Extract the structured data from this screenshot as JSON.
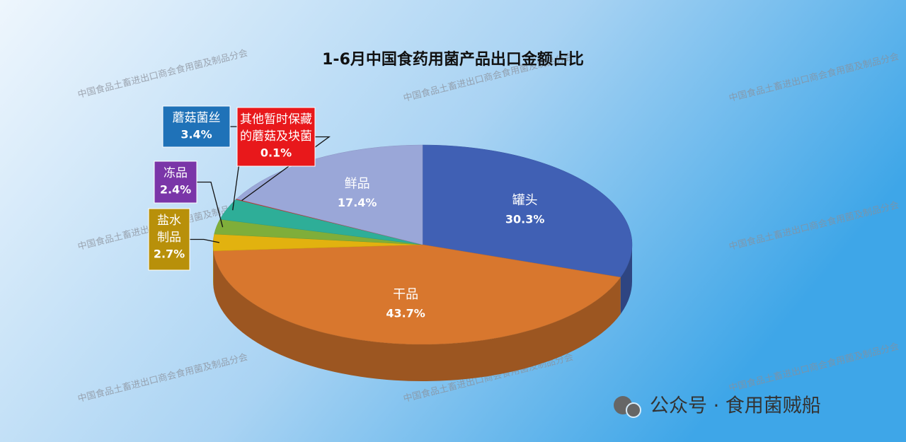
{
  "chart_data": {
    "type": "pie",
    "title": "1-6月中国食药用菌产品出口金额占比",
    "categories": [
      "罐头",
      "干品",
      "盐水制品",
      "冻品",
      "蘑菇菌丝",
      "其他暂时保藏的蘑菇及块菌",
      "鲜品"
    ],
    "values": [
      30.3,
      43.7,
      2.7,
      2.4,
      3.4,
      0.1,
      17.4
    ],
    "value_labels": [
      "30.3%",
      "43.7%",
      "2.7%",
      "2.4%",
      "3.4%",
      "0.1%",
      "17.4%"
    ],
    "colors": [
      "#4060b4",
      "#d8772e",
      "#e2b20f",
      "#7fae3a",
      "#2eae98",
      "#d2302a",
      "#9aa7d8"
    ],
    "outside_label_colors": [
      null,
      null,
      "#b8900a",
      "#7a35a8",
      "#1f72b8",
      "#e8181b",
      null
    ]
  },
  "watermark": "中国食品土畜进出口商会食用菌及制品分会",
  "footer": "公众号 · 食用菌贼船"
}
